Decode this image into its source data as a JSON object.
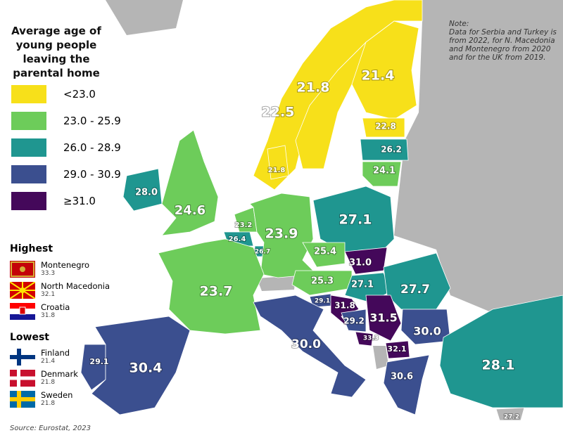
{
  "legend": {
    "title": "Average age of young people leaving the parental home",
    "items": [
      {
        "label": "<23.0",
        "color": "#f7e01a"
      },
      {
        "label": "23.0 - 25.9",
        "color": "#6dcc5a"
      },
      {
        "label": "26.0 - 28.9",
        "color": "#1f9690"
      },
      {
        "label": "29.0 - 30.9",
        "color": "#3b4f8f"
      },
      {
        "label": "≥31.0",
        "color": "#44085a"
      }
    ]
  },
  "note": {
    "title": "Note:",
    "text": "Data for Serbia and Turkey is from 2022, for N. Macedonia and Montenegro from 2020 and for the UK from 2019."
  },
  "highest": {
    "title": "Highest",
    "items": [
      {
        "country": "Montenegro",
        "value": "33.3"
      },
      {
        "country": "North Macedonia",
        "value": "32.1"
      },
      {
        "country": "Croatia",
        "value": "31.8"
      }
    ]
  },
  "lowest": {
    "title": "Lowest",
    "items": [
      {
        "country": "Finland",
        "value": "21.4"
      },
      {
        "country": "Denmark",
        "value": "21.8"
      },
      {
        "country": "Sweden",
        "value": "21.8"
      }
    ]
  },
  "source": "Source: Eurostat, 2023",
  "regions": [
    {
      "label": "22.5",
      "color": "#f7e01a"
    },
    {
      "label": "21.8",
      "color": "#f7e01a"
    },
    {
      "label": "21.4",
      "color": "#f7e01a"
    },
    {
      "label": "22.8",
      "color": "#f7e01a"
    },
    {
      "label": "26.2",
      "color": "#1f9690"
    },
    {
      "label": "24.1",
      "color": "#6dcc5a"
    },
    {
      "label": "21.8",
      "color": "#f7e01a"
    },
    {
      "label": "28.0",
      "color": "#1f9690"
    },
    {
      "label": "24.6",
      "color": "#6dcc5a"
    },
    {
      "label": "23.2",
      "color": "#6dcc5a"
    },
    {
      "label": "26.4",
      "color": "#1f9690"
    },
    {
      "label": "26.7",
      "color": "#1f9690"
    },
    {
      "label": "23.9",
      "color": "#6dcc5a"
    },
    {
      "label": "27.1",
      "color": "#1f9690"
    },
    {
      "label": "25.4",
      "color": "#6dcc5a"
    },
    {
      "label": "31.0",
      "color": "#44085a"
    },
    {
      "label": "25.3",
      "color": "#6dcc5a"
    },
    {
      "label": "27.1",
      "color": "#1f9690"
    },
    {
      "label": "27.7",
      "color": "#1f9690"
    },
    {
      "label": "23.7",
      "color": "#6dcc5a"
    },
    {
      "label": "29.1",
      "color": "#3b4f8f"
    },
    {
      "label": "31.8",
      "color": "#44085a"
    },
    {
      "label": "29.2",
      "color": "#3b4f8f"
    },
    {
      "label": "31.5",
      "color": "#44085a"
    },
    {
      "label": "33.3",
      "color": "#44085a"
    },
    {
      "label": "32.1",
      "color": "#44085a"
    },
    {
      "label": "30.0",
      "color": "#3b4f8f"
    },
    {
      "label": "30.0",
      "color": "#3b4f8f"
    },
    {
      "label": "29.1",
      "color": "#3b4f8f"
    },
    {
      "label": "30.4",
      "color": "#3b4f8f"
    },
    {
      "label": "30.6",
      "color": "#3b4f8f"
    },
    {
      "label": "28.1",
      "color": "#1f9690"
    },
    {
      "label": "27.2",
      "color": "#b5b5b5"
    }
  ]
}
